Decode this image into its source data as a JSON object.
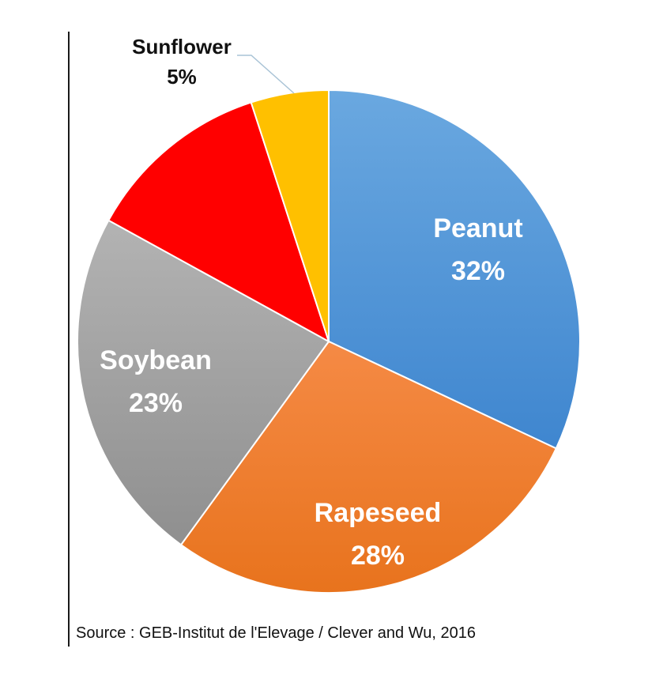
{
  "chart_data": {
    "type": "pie",
    "title": "",
    "slices": [
      {
        "name": "Peanut",
        "value": 32,
        "label": "32%",
        "color": "#4a90d6"
      },
      {
        "name": "Rapeseed",
        "value": 28,
        "label": "28%",
        "color": "#f07a22"
      },
      {
        "name": "Soybean",
        "value": 23,
        "label": "23%",
        "color": "#a5a5a5"
      },
      {
        "name": "",
        "value": 12,
        "label": "",
        "color": "#ff0000"
      },
      {
        "name": "Sunflower",
        "value": 5,
        "label": "5%",
        "color": "#ffc000"
      }
    ]
  },
  "source_text": "Source : GEB-Institut de l'Elevage / Clever and Wu, 2016"
}
